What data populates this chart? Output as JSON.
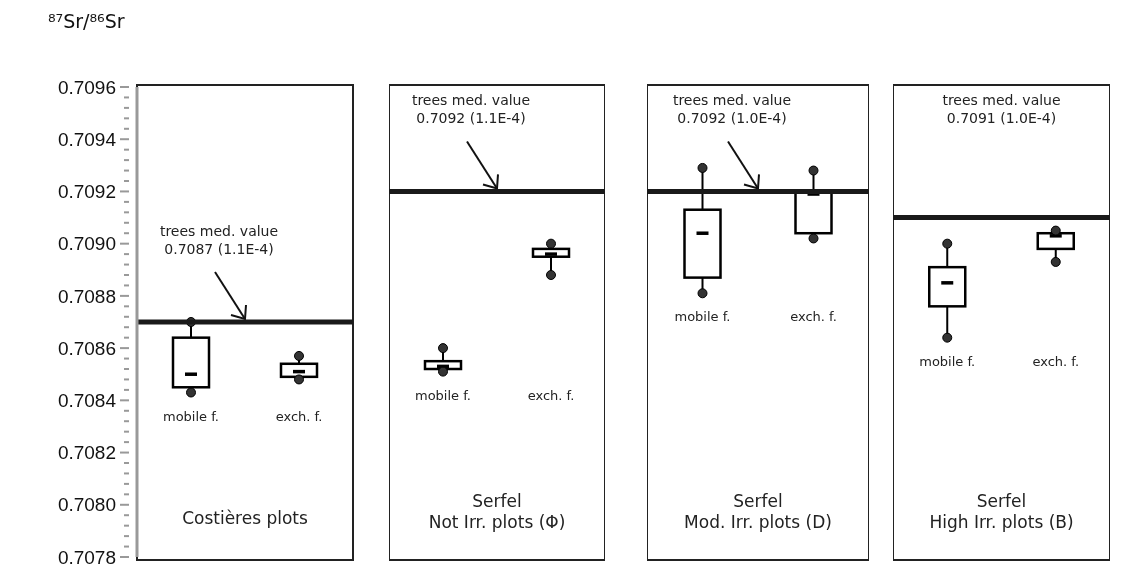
{
  "chart_data": [
    {
      "type": "box",
      "title": "Costières plots",
      "ylabel": "⁸⁷Sr/⁸⁶Sr",
      "categories": [
        "mobile f.",
        "exch. f."
      ],
      "boxes": [
        {
          "low": 0.70843,
          "q1": 0.70845,
          "median": 0.7085,
          "q3": 0.70864,
          "high": 0.7087
        },
        {
          "low": 0.70848,
          "q1": 0.70849,
          "median": 0.70851,
          "q3": 0.70854,
          "high": 0.70857
        }
      ],
      "ylim": [
        0.7078,
        0.7096
      ],
      "yticks": [
        0.7078,
        {
          "value": 0.70784,
          "label": null
        },
        {
          "value": 0.70788,
          "label": null
        },
        {
          "value": 0.70792,
          "label": null
        },
        {
          "value": 0.70796,
          "label": null
        },
        {
          "value": 0.708,
          "label": "0.7080"
        },
        {
          "value": 0.70804,
          "label": null
        },
        {
          "value": 0.70808,
          "label": null
        },
        {
          "value": 0.70812,
          "label": null
        },
        {
          "value": 0.70816,
          "label": null
        },
        0.7082,
        {
          "value": 0.70824,
          "label": null
        },
        {
          "value": 0.70828,
          "label": null
        },
        {
          "value": 0.70832,
          "label": null
        },
        {
          "value": 0.70836,
          "label": null
        },
        0.7084,
        {
          "value": 0.70844,
          "label": null
        },
        {
          "value": 0.70848,
          "label": null
        },
        {
          "value": 0.70852,
          "label": null
        },
        {
          "value": 0.70856,
          "label": null
        },
        0.7086,
        {
          "value": 0.70864,
          "label": null
        },
        {
          "value": 0.70868,
          "label": null
        },
        {
          "value": 0.70872,
          "label": null
        },
        {
          "value": 0.70876,
          "label": null
        },
        0.7088,
        {
          "value": 0.70884,
          "label": null
        },
        {
          "value": 0.70888,
          "label": null
        },
        {
          "value": 0.70892,
          "label": null
        },
        {
          "value": 0.70896,
          "label": null
        },
        {
          "value": 0.709,
          "label": "0.7090"
        },
        {
          "value": 0.70904,
          "label": null
        },
        {
          "value": 0.70908,
          "label": null
        },
        {
          "value": 0.70912,
          "label": null
        },
        {
          "value": 0.70916,
          "label": null
        },
        0.7092,
        {
          "value": 0.70924,
          "label": null
        },
        {
          "value": 0.70928,
          "label": null
        },
        {
          "value": 0.70932,
          "label": null
        },
        {
          "value": 0.70936,
          "label": null
        },
        0.7094,
        {
          "value": 0.70944,
          "label": null
        },
        {
          "value": 0.70948,
          "label": null
        },
        {
          "value": 0.70952,
          "label": null
        },
        {
          "value": 0.70956,
          "label": null
        },
        0.7096
      ],
      "ref_lines": [
        {
          "axis": "y",
          "value": 0.7087,
          "color": "#1a1a1a",
          "label": "trees med. value\n0.7087 (1.1E-4)"
        }
      ],
      "grid": false
    },
    {
      "type": "box",
      "title": "Serfel\nNot Irr. plots (Φ)",
      "categories": [
        "mobile f.",
        "exch. f."
      ],
      "boxes": [
        {
          "low": 0.70851,
          "q1": 0.70852,
          "median": 0.70853,
          "q3": 0.70855,
          "high": 0.7086
        },
        {
          "low": 0.70888,
          "q1": 0.70895,
          "median": 0.70896,
          "q3": 0.70898,
          "high": 0.709
        }
      ],
      "ylim": [
        0.7078,
        0.7096
      ],
      "tick_labels": "x",
      "ref_lines": [
        {
          "axis": "y",
          "value": 0.7092,
          "color": "#1a1a1a",
          "label": "trees med. value\n0.7092 (1.1E-4)"
        }
      ],
      "grid": false
    },
    {
      "type": "box",
      "title": "Serfel\nMod. Irr. plots (D)",
      "categories": [
        "mobile f.",
        "exch. f."
      ],
      "boxes": [
        {
          "low": 0.70881,
          "q1": 0.70887,
          "median": 0.70904,
          "q3": 0.70913,
          "high": 0.70929
        },
        {
          "low": 0.70902,
          "q1": 0.70904,
          "median": 0.70919,
          "q3": 0.7092,
          "high": 0.70928
        }
      ],
      "ylim": [
        0.7078,
        0.7096
      ],
      "tick_labels": "x",
      "ref_lines": [
        {
          "axis": "y",
          "value": 0.7092,
          "color": "#1a1a1a",
          "label": "trees med. value\n0.7092 (1.0E-4)"
        }
      ],
      "grid": false
    },
    {
      "type": "box",
      "title": "Serfel\nHigh Irr. plots (B)",
      "categories": [
        "mobile f.",
        "exch. f."
      ],
      "boxes": [
        {
          "low": 0.70864,
          "q1": 0.70876,
          "median": 0.70885,
          "q3": 0.70891,
          "high": 0.709
        },
        {
          "low": 0.70893,
          "q1": 0.70898,
          "median": 0.70903,
          "q3": 0.70904,
          "high": 0.70905
        }
      ],
      "ylim": [
        0.7078,
        0.7096
      ],
      "tick_labels": "x",
      "ref_lines": [
        {
          "axis": "y",
          "value": 0.7091,
          "color": "#1a1a1a"
        }
      ],
      "annotations": [
        "trees med. value\n0.7091 (1.0E-4)"
      ],
      "grid": false
    }
  ]
}
